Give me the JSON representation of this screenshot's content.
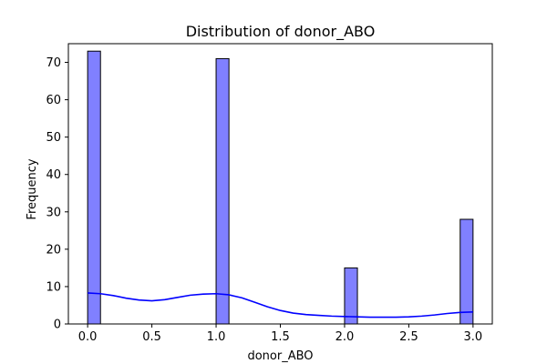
{
  "chart_data": {
    "type": "bar",
    "title": "Distribution of donor_ABO",
    "xlabel": "donor_ABO",
    "ylabel": "Frequency",
    "xlim": [
      -0.15,
      3.15
    ],
    "ylim": [
      0,
      75
    ],
    "xticks": [
      0.0,
      0.5,
      1.0,
      1.5,
      2.0,
      2.5,
      3.0
    ],
    "xtick_labels": [
      "0.0",
      "0.5",
      "1.0",
      "1.5",
      "2.0",
      "2.5",
      "3.0"
    ],
    "yticks": [
      0,
      10,
      20,
      30,
      40,
      50,
      60,
      70
    ],
    "ytick_labels": [
      "0",
      "10",
      "20",
      "30",
      "40",
      "50",
      "60",
      "70"
    ],
    "bins": [
      {
        "x0": 0.0,
        "x1": 0.1,
        "value": 73
      },
      {
        "x0": 1.0,
        "x1": 1.1,
        "value": 71
      },
      {
        "x0": 2.0,
        "x1": 2.1,
        "value": 15
      },
      {
        "x0": 2.9,
        "x1": 3.0,
        "value": 28
      }
    ],
    "kde": {
      "x": [
        0.0,
        0.1,
        0.2,
        0.3,
        0.4,
        0.5,
        0.6,
        0.7,
        0.8,
        0.9,
        1.0,
        1.1,
        1.2,
        1.3,
        1.4,
        1.5,
        1.6,
        1.7,
        1.8,
        1.9,
        2.0,
        2.1,
        2.2,
        2.3,
        2.4,
        2.5,
        2.6,
        2.7,
        2.8,
        2.9,
        3.0
      ],
      "y": [
        8.3,
        8.1,
        7.6,
        6.9,
        6.4,
        6.2,
        6.5,
        7.1,
        7.7,
        8.0,
        8.1,
        7.8,
        7.0,
        5.8,
        4.6,
        3.6,
        2.9,
        2.5,
        2.3,
        2.1,
        2.0,
        1.9,
        1.8,
        1.8,
        1.8,
        1.9,
        2.1,
        2.4,
        2.8,
        3.1,
        3.2
      ]
    },
    "colors": {
      "bar_fill": "#8080ff",
      "bar_edge": "#000000",
      "kde_line": "#0000ff"
    },
    "grid": false,
    "legend": "none"
  }
}
